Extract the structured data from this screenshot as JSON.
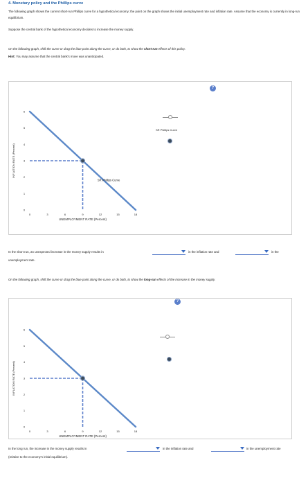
{
  "title": "4. Monetary policy and the Phillips curve",
  "intro": "The following graph shows the current short-run Phillips curve for a hypothetical economy; the point on the graph shows the initial unemployment rate and inflation rate. Assume that the economy is currently in long-run equilibrium.",
  "scenario": "Suppose the central bank of the hypothetical economy decides to increase the money supply.",
  "instr1": {
    "pre": "On the following graph, shift the curve or drag the blue point along the curve, or do both, to show the ",
    "bold": "short-run",
    "post": " effects of this policy."
  },
  "hint": {
    "label": "Hint:",
    "text": " You may assume that the central bank's move was unanticipated."
  },
  "instr2": {
    "pre": "On the following graph, shift the curve or drag the blue point along the curve, or do both, to show the ",
    "bold": "long-run",
    "post": " effects of the increase in the money supply."
  },
  "help_icon": "?",
  "graph": {
    "ylabel": "INFLATION RATE (Percent)",
    "xlabel": "UNEMPLOYMENT RATE (Percent)",
    "xticks": [
      "0",
      "3",
      "6",
      "9",
      "12",
      "15",
      "18"
    ],
    "yticks": [
      "0",
      "1",
      "2",
      "3",
      "4",
      "5",
      "6"
    ],
    "curve_label": "SR Phillips Curve",
    "legend_label": "SR Phillips Curve",
    "point": {
      "x": 9,
      "y": 3
    },
    "curve": {
      "x1": 0,
      "y1": 6,
      "x2": 18,
      "y2": 0
    },
    "xlim": [
      0,
      18
    ],
    "ylim": [
      0,
      6
    ]
  },
  "q1": {
    "pre": "In the short run, an unexpected increase in the money supply results in",
    "mid": "in the inflation rate and",
    "post": "in the",
    "end": "unemployment rate."
  },
  "q2": {
    "pre": "In the long run, the increase in the money supply results in",
    "mid": "in the inflation rate and",
    "post": "in the unemployment rate",
    "end": "(relative to the economy's initial equilibrium)."
  },
  "colors": {
    "curve": "#5b88c8",
    "point_fill": "#3a4a5a",
    "dash": "#5b7fcb",
    "title": "#1f5fa6"
  }
}
